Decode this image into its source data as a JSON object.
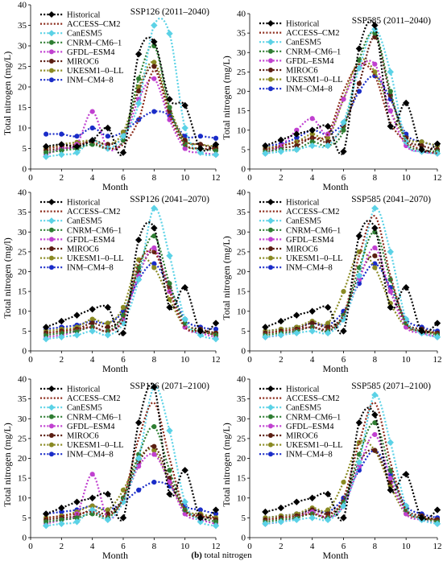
{
  "figure": {
    "caption_label": "(b)",
    "caption_text": "total nitrogen"
  },
  "series_styles": [
    {
      "name": "Historical",
      "color": "#000000",
      "marker": "diamond"
    },
    {
      "name": "ACCESS–CM2",
      "color": "#8B2A1A",
      "marker": "none"
    },
    {
      "name": "CanESM5",
      "color": "#5BD2E6",
      "marker": "diamond"
    },
    {
      "name": "CNRM–CM6–1",
      "color": "#2E7D32",
      "marker": "circle"
    },
    {
      "name": "GFDL–ESM4",
      "color": "#C040D0",
      "marker": "circle"
    },
    {
      "name": "MIROC6",
      "color": "#5A1E12",
      "marker": "circle"
    },
    {
      "name": "UKESM1–0–LL",
      "color": "#8A8A22",
      "marker": "circle"
    },
    {
      "name": "INM–CM4–8",
      "color": "#1A2CC8",
      "marker": "circle"
    }
  ],
  "chart_data": [
    {
      "type": "line",
      "title": "SSP126 (2011–2040)",
      "xlabel": "Month",
      "ylabel": "Total nitrogen (mg/L)",
      "xlim": [
        0,
        12
      ],
      "ylim": [
        0,
        40
      ],
      "xticks": [
        0,
        2,
        4,
        6,
        8,
        10,
        12
      ],
      "yticks": [
        0,
        5,
        10,
        15,
        20,
        25,
        30,
        35,
        40
      ],
      "legend": "top-left",
      "x": [
        1,
        2,
        3,
        4,
        5,
        6,
        7,
        8,
        9,
        10,
        11,
        12
      ],
      "series": [
        {
          "name": "Historical",
          "values": [
            5.5,
            6,
            5.5,
            7,
            10,
            4,
            28,
            31,
            17,
            15.5,
            5,
            6
          ]
        },
        {
          "name": "ACCESS–CM2",
          "values": [
            5,
            5.5,
            6,
            6.5,
            5,
            6,
            12,
            24,
            13,
            6,
            5,
            5
          ]
        },
        {
          "name": "CanESM5",
          "values": [
            3,
            3.5,
            4,
            7,
            5,
            8,
            16,
            35,
            33,
            10,
            4,
            3.5
          ]
        },
        {
          "name": "CNRM–CM6–1",
          "values": [
            4,
            4.5,
            5,
            6,
            5,
            7,
            22,
            30,
            15,
            6,
            5,
            4.5
          ]
        },
        {
          "name": "GFDL–ESM4",
          "values": [
            3.5,
            5,
            6,
            14,
            5,
            7,
            17,
            22,
            12,
            5,
            4,
            3.5
          ]
        },
        {
          "name": "MIROC6",
          "values": [
            4.5,
            5,
            5.5,
            7,
            6,
            8,
            19,
            25,
            14,
            7,
            6,
            5
          ]
        },
        {
          "name": "UKESM1–0–LL",
          "values": [
            5,
            6,
            6.5,
            7,
            6,
            9,
            20,
            26,
            15,
            7,
            6,
            5.5
          ]
        },
        {
          "name": "INM–CM4–8",
          "values": [
            8.5,
            8.5,
            8,
            10,
            8,
            9,
            12,
            14,
            13,
            8,
            8,
            7.5
          ]
        }
      ]
    },
    {
      "type": "line",
      "title": "SSP585 (2011–2040)",
      "xlabel": "Month",
      "ylabel": "Total nitrogen (mg/L)",
      "xlim": [
        0,
        12
      ],
      "ylim": [
        0,
        40
      ],
      "xticks": [
        0,
        2,
        4,
        6,
        8,
        10,
        12
      ],
      "yticks": [
        0,
        5,
        10,
        15,
        20,
        25,
        30,
        35,
        40
      ],
      "legend": "top-left",
      "x": [
        1,
        2,
        3,
        4,
        5,
        6,
        7,
        8,
        9,
        10,
        11,
        12
      ],
      "series": [
        {
          "name": "Historical",
          "values": [
            6,
            7.5,
            9,
            10,
            11,
            4.5,
            31,
            37,
            11,
            17,
            5,
            6.5
          ]
        },
        {
          "name": "ACCESS–CM2",
          "values": [
            5,
            6,
            7,
            8,
            9,
            20,
            27,
            24,
            12,
            7,
            5,
            4
          ]
        },
        {
          "name": "CanESM5",
          "values": [
            4,
            4.5,
            5,
            6,
            6,
            12,
            26,
            36,
            25,
            7,
            4.5,
            4
          ]
        },
        {
          "name": "CNRM–CM6–1",
          "values": [
            4.5,
            5,
            5,
            7,
            6,
            10,
            28,
            35,
            20,
            7,
            5,
            4.5
          ]
        },
        {
          "name": "GFDL–ESM4",
          "values": [
            4,
            6,
            10,
            13,
            9,
            18,
            26,
            27,
            15,
            6,
            4.5,
            4
          ]
        },
        {
          "name": "MIROC6",
          "values": [
            5,
            5.5,
            6,
            8,
            7,
            11,
            22,
            34,
            19,
            8,
            6,
            5
          ]
        },
        {
          "name": "UKESM1–0–LL",
          "values": [
            5.5,
            6,
            7,
            9,
            8,
            18,
            28,
            25,
            15,
            8,
            7,
            6
          ]
        },
        {
          "name": "INM–CM4–8",
          "values": [
            6,
            6.5,
            8,
            10,
            9,
            12,
            20,
            24,
            18,
            9,
            7,
            6
          ]
        }
      ]
    },
    {
      "type": "line",
      "title": "SSP126 (2041–2070)",
      "xlabel": "Month",
      "ylabel": "Total nitrogen (mg/l)",
      "xlim": [
        0,
        12
      ],
      "ylim": [
        0,
        40
      ],
      "xticks": [
        0,
        2,
        4,
        6,
        8,
        10,
        12
      ],
      "yticks": [
        0,
        5,
        10,
        15,
        20,
        25,
        30,
        35,
        40
      ],
      "legend": "top-left",
      "x": [
        1,
        2,
        3,
        4,
        5,
        6,
        7,
        8,
        9,
        10,
        11,
        12
      ],
      "series": [
        {
          "name": "Historical",
          "values": [
            6,
            7.5,
            9,
            10.5,
            11,
            4.5,
            28,
            31,
            11,
            16,
            5,
            7
          ]
        },
        {
          "name": "ACCESS–CM2",
          "values": [
            4.5,
            5,
            5.5,
            6,
            5,
            8,
            22,
            25,
            15,
            6,
            5,
            4
          ]
        },
        {
          "name": "CanESM5",
          "values": [
            3,
            3.5,
            4,
            5,
            4,
            7,
            18,
            36,
            24,
            8,
            4,
            3
          ]
        },
        {
          "name": "CNRM–CM6–1",
          "values": [
            4,
            4.5,
            5,
            6,
            5,
            9,
            21,
            29,
            17,
            7,
            5,
            4
          ]
        },
        {
          "name": "GFDL–ESM4",
          "values": [
            3.5,
            4,
            5,
            6,
            5,
            8,
            19,
            26,
            15,
            6,
            4.5,
            3.5
          ]
        },
        {
          "name": "MIROC6",
          "values": [
            4.5,
            5,
            5.5,
            7,
            6,
            9,
            20,
            25,
            16,
            7,
            5.5,
            4.5
          ]
        },
        {
          "name": "UKESM1–0–LL",
          "values": [
            5,
            5.5,
            6,
            8,
            7,
            11,
            23,
            21,
            13,
            6,
            5,
            4.5
          ]
        },
        {
          "name": "INM–CM4–8",
          "values": [
            5.5,
            6,
            6.5,
            7.5,
            7,
            10,
            18,
            22,
            16,
            8,
            6,
            5.5
          ]
        }
      ]
    },
    {
      "type": "line",
      "title": "SSP585 (2041–2070)",
      "xlabel": "Month",
      "ylabel": "Total nitrogen (mg/L)",
      "xlim": [
        0,
        12
      ],
      "ylim": [
        0,
        40
      ],
      "xticks": [
        0,
        2,
        4,
        6,
        8,
        10,
        12
      ],
      "yticks": [
        0,
        5,
        10,
        15,
        20,
        25,
        30,
        35,
        40
      ],
      "legend": "top-left",
      "x": [
        1,
        2,
        3,
        4,
        5,
        6,
        7,
        8,
        9,
        10,
        11,
        12
      ],
      "series": [
        {
          "name": "Historical",
          "values": [
            6,
            7.5,
            9,
            10,
            11,
            5,
            29,
            31,
            11,
            16,
            5,
            7
          ]
        },
        {
          "name": "ACCESS–CM2",
          "values": [
            4.5,
            5,
            5.5,
            6,
            5.5,
            9,
            24,
            34,
            19,
            7,
            5,
            4.5
          ]
        },
        {
          "name": "CanESM5",
          "values": [
            3.5,
            4,
            4.5,
            5,
            4.5,
            8,
            19,
            36,
            25,
            8,
            4.5,
            3.5
          ]
        },
        {
          "name": "CNRM–CM6–1",
          "values": [
            4,
            4.5,
            5,
            6,
            5,
            9,
            21,
            30,
            18,
            7,
            5,
            4
          ]
        },
        {
          "name": "GFDL–ESM4",
          "values": [
            3.5,
            4,
            5,
            6,
            5,
            8,
            18,
            26,
            15,
            6,
            4.5,
            3.5
          ]
        },
        {
          "name": "MIROC6",
          "values": [
            4.5,
            5,
            5.5,
            7,
            6,
            9,
            19,
            24,
            15,
            7,
            5.5,
            4.5
          ]
        },
        {
          "name": "UKESM1–0–LL",
          "values": [
            5,
            5.5,
            6,
            7.5,
            7,
            15,
            25,
            21,
            12,
            6,
            5,
            4.5
          ]
        },
        {
          "name": "INM–CM4–8",
          "values": [
            5,
            5.5,
            6,
            7,
            6.5,
            10,
            17,
            22,
            16,
            8,
            6,
            5
          ]
        }
      ]
    },
    {
      "type": "line",
      "title": "SSP126 (2071–2100)",
      "xlabel": "Month",
      "ylabel": "Total nitrogen (mg/L)",
      "xlim": [
        0,
        12
      ],
      "ylim": [
        0,
        40
      ],
      "xticks": [
        0,
        2,
        4,
        6,
        8,
        10,
        12
      ],
      "yticks": [
        0,
        5,
        10,
        15,
        20,
        25,
        30,
        35,
        40
      ],
      "legend": "top-left",
      "x": [
        1,
        2,
        3,
        4,
        5,
        6,
        7,
        8,
        9,
        10,
        11,
        12
      ],
      "series": [
        {
          "name": "Historical",
          "values": [
            6,
            7.5,
            9,
            10,
            11,
            5,
            29,
            38,
            11,
            17,
            5,
            7
          ]
        },
        {
          "name": "ACCESS–CM2",
          "values": [
            5,
            5.5,
            6,
            6.5,
            5.5,
            10,
            25,
            34,
            20,
            7,
            5.5,
            5
          ]
        },
        {
          "name": "CanESM5",
          "values": [
            3,
            3.5,
            4,
            7,
            4.5,
            9,
            20,
            38,
            27,
            9,
            4,
            3
          ]
        },
        {
          "name": "CNRM–CM6–1",
          "values": [
            4,
            4.5,
            5,
            6,
            5,
            10,
            21,
            28,
            17,
            7,
            5,
            4
          ]
        },
        {
          "name": "GFDL–ESM4",
          "values": [
            3.5,
            4.5,
            6,
            16,
            5,
            9,
            18,
            21,
            14,
            6,
            4.5,
            3.5
          ]
        },
        {
          "name": "MIROC6",
          "values": [
            4.5,
            5,
            5.5,
            7,
            6,
            10,
            19,
            23,
            15,
            7,
            5.5,
            4.5
          ]
        },
        {
          "name": "UKESM1–0–LL",
          "values": [
            5,
            5.5,
            6.5,
            8,
            7,
            12,
            20,
            22,
            14,
            7,
            6,
            5
          ]
        },
        {
          "name": "INM–CM4–8",
          "values": [
            6,
            6.5,
            7,
            8,
            7,
            9,
            12,
            14,
            13,
            8,
            7,
            6
          ]
        }
      ]
    },
    {
      "type": "line",
      "title": "SSP585 (2071–2100)",
      "xlabel": "Month",
      "ylabel": "Total nitrogen (mg/L)",
      "xlim": [
        0,
        12
      ],
      "ylim": [
        0,
        40
      ],
      "xticks": [
        0,
        2,
        4,
        6,
        8,
        10,
        12
      ],
      "yticks": [
        0,
        5,
        10,
        15,
        20,
        25,
        30,
        35,
        40
      ],
      "legend": "top-left",
      "x": [
        1,
        2,
        3,
        4,
        5,
        6,
        7,
        8,
        9,
        10,
        11,
        12
      ],
      "series": [
        {
          "name": "Historical",
          "values": [
            6.5,
            7.5,
            9,
            10,
            11,
            5,
            29,
            31,
            12,
            16,
            5,
            7
          ]
        },
        {
          "name": "ACCESS–CM2",
          "values": [
            4.5,
            5,
            5.5,
            6,
            5.5,
            10,
            24,
            34,
            19,
            7,
            5,
            4.5
          ]
        },
        {
          "name": "CanESM5",
          "values": [
            3.5,
            4,
            4.5,
            5,
            4.5,
            8,
            19,
            36,
            24,
            8,
            4.5,
            3.5
          ]
        },
        {
          "name": "CNRM–CM6–1",
          "values": [
            4,
            4.5,
            5,
            6,
            5,
            9,
            21,
            29,
            17,
            7,
            5,
            4
          ]
        },
        {
          "name": "GFDL–ESM4",
          "values": [
            3.5,
            4,
            5,
            6.5,
            5,
            8,
            18,
            26,
            15,
            6,
            4.5,
            3.5
          ]
        },
        {
          "name": "MIROC6",
          "values": [
            4.5,
            5,
            5.5,
            7,
            6,
            9,
            19,
            22,
            14,
            7,
            5.5,
            4.5
          ]
        },
        {
          "name": "UKESM1–0–LL",
          "values": [
            5,
            5.5,
            6,
            7.5,
            7,
            14,
            24,
            22,
            13,
            6,
            5,
            4.5
          ]
        },
        {
          "name": "INM–CM4–8",
          "values": [
            5,
            5.5,
            6,
            7,
            6.5,
            10,
            17,
            22,
            16,
            8,
            6,
            5
          ]
        }
      ]
    }
  ]
}
